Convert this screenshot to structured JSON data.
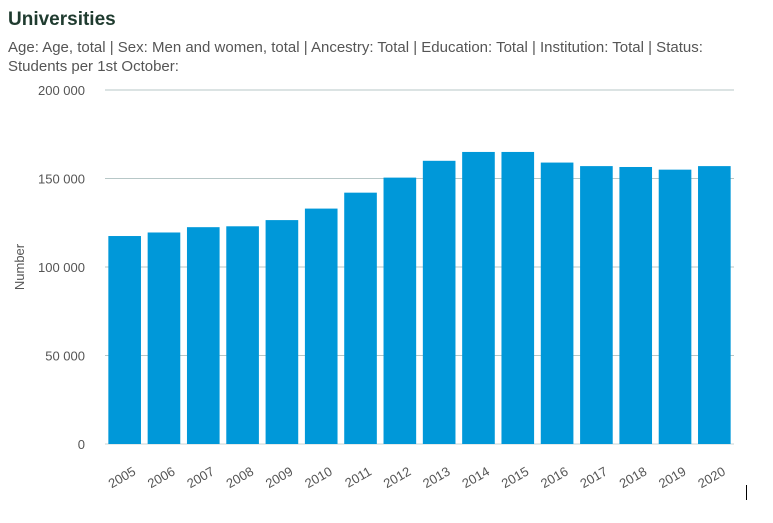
{
  "title": "Universities",
  "subtitle": "Age: Age, total | Sex: Men and women, total | Ancestry: Total | Education: Total | Institution: Total | Status: Students per 1st October:",
  "chart_data": {
    "type": "bar",
    "title": "Universities",
    "subtitle": "Age: Age, total | Sex: Men and women, total | Ancestry: Total | Education: Total | Institution: Total | Status: Students per 1st October:",
    "xlabel": "",
    "ylabel": "Number",
    "ylim": [
      0,
      200000
    ],
    "yticks": [
      0,
      50000,
      100000,
      150000,
      200000
    ],
    "ytick_labels": [
      "0",
      "50 000",
      "100 000",
      "150 000",
      "200 000"
    ],
    "grid": true,
    "categories": [
      "2005",
      "2006",
      "2007",
      "2008",
      "2009",
      "2010",
      "2011",
      "2012",
      "2013",
      "2014",
      "2015",
      "2016",
      "2017",
      "2018",
      "2019",
      "2020"
    ],
    "values": [
      117500,
      119500,
      122500,
      123000,
      126500,
      133000,
      142000,
      150500,
      160000,
      165000,
      165000,
      159000,
      157000,
      156500,
      155000,
      157000
    ],
    "colors": {
      "bar": "#0098d9",
      "grid": "#b7c7c7",
      "axis_text": "#555555",
      "baseline": "#c8d4d4"
    }
  }
}
